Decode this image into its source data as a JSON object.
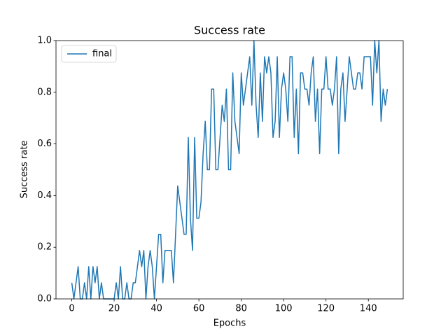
{
  "chart_data": {
    "type": "line",
    "title": "Success rate",
    "xlabel": "Epochs",
    "ylabel": "Success rate",
    "x": [
      0,
      1,
      2,
      3,
      4,
      5,
      6,
      7,
      8,
      9,
      10,
      11,
      12,
      13,
      14,
      15,
      16,
      17,
      18,
      19,
      20,
      21,
      22,
      23,
      24,
      25,
      26,
      27,
      28,
      29,
      30,
      31,
      32,
      33,
      34,
      35,
      36,
      37,
      38,
      39,
      40,
      41,
      42,
      43,
      44,
      45,
      46,
      47,
      48,
      49,
      50,
      51,
      52,
      53,
      54,
      55,
      56,
      57,
      58,
      59,
      60,
      61,
      62,
      63,
      64,
      65,
      66,
      67,
      68,
      69,
      70,
      71,
      72,
      73,
      74,
      75,
      76,
      77,
      78,
      79,
      80,
      81,
      82,
      83,
      84,
      85,
      86,
      87,
      88,
      89,
      90,
      91,
      92,
      93,
      94,
      95,
      96,
      97,
      98,
      99,
      100,
      101,
      102,
      103,
      104,
      105,
      106,
      107,
      108,
      109,
      110,
      111,
      112,
      113,
      114,
      115,
      116,
      117,
      118,
      119,
      120,
      121,
      122,
      123,
      124,
      125,
      126,
      127,
      128,
      129,
      130,
      131,
      132,
      133,
      134,
      135,
      136,
      137,
      138,
      139,
      140,
      141,
      142,
      143,
      144,
      145,
      146,
      147,
      148,
      149
    ],
    "series": [
      {
        "name": "final",
        "color": "#1f77b4",
        "values": [
          0.0625,
          0,
          0.0625,
          0.125,
          0,
          0,
          0.0625,
          0,
          0.125,
          0,
          0.125,
          0.0625,
          0.125,
          0,
          0.0625,
          0,
          0,
          0,
          0,
          0,
          0,
          0.0625,
          0,
          0.125,
          0,
          0,
          0.0625,
          0,
          0,
          0.0625,
          0.0625,
          0.125,
          0.1875,
          0.125,
          0.1875,
          0,
          0.125,
          0.1875,
          0.125,
          0,
          0.125,
          0.25,
          0.25,
          0.0625,
          0.1875,
          0.1875,
          0.1875,
          0.1875,
          0.0625,
          0.25,
          0.4375,
          0.375,
          0.3125,
          0.25,
          0.25,
          0.625,
          0.3125,
          0.1875,
          0.625,
          0.3125,
          0.3125,
          0.375,
          0.5625,
          0.6875,
          0.5,
          0.5,
          0.8125,
          0.8125,
          0.5,
          0.5,
          0.625,
          0.75,
          0.6875,
          0.8125,
          0.5,
          0.5,
          0.875,
          0.6875,
          0.625,
          0.5625,
          0.875,
          0.75,
          0.8125,
          0.875,
          0.9375,
          0.75,
          1.0,
          0.75,
          0.625,
          0.875,
          0.6875,
          0.9375,
          0.875,
          0.9375,
          0.875,
          0.625,
          0.6875,
          0.9375,
          0.625,
          0.8125,
          0.875,
          0.8125,
          0.6875,
          0.9375,
          0.9375,
          0.625,
          0.8125,
          0.5625,
          0.875,
          0.875,
          0.8125,
          0.8125,
          0.75,
          0.875,
          0.9375,
          0.6875,
          0.8125,
          0.5625,
          0.8125,
          0.8125,
          0.9375,
          0.8125,
          0.8125,
          0.75,
          0.8125,
          0.9375,
          0.5625,
          0.8125,
          0.875,
          0.6875,
          0.8125,
          0.9375,
          0.875,
          0.8125,
          0.8125,
          0.875,
          0.875,
          0.8125,
          0.9375,
          0.9375,
          0.9375,
          0.9375,
          0.75,
          1.0,
          0.875,
          1.0,
          0.6875,
          0.8125,
          0.75,
          0.8125
        ]
      }
    ],
    "xlim": [
      -7.45,
      156.45
    ],
    "xticks": [
      0,
      20,
      40,
      60,
      80,
      100,
      120,
      140
    ],
    "ylim": [
      0,
      1
    ],
    "yticks": [
      {
        "value": 0,
        "label": "0.0"
      },
      0.2,
      0.4,
      0.6,
      0.8,
      {
        "value": 1,
        "label": "1.0"
      }
    ],
    "legend": "upper left"
  }
}
